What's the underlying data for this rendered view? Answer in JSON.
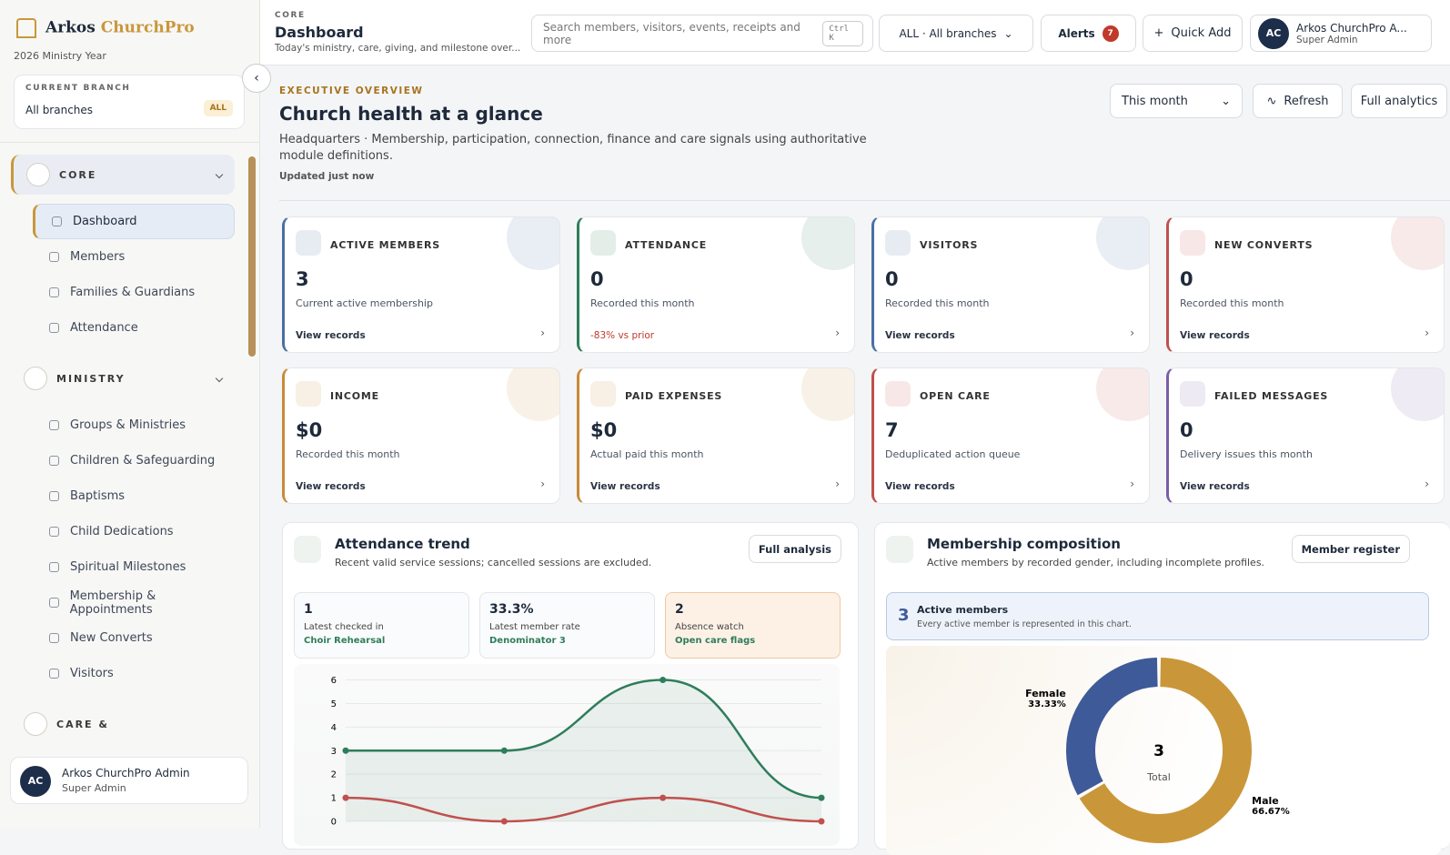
{
  "sidebar": {
    "brand_a": "Arkos",
    "brand_b": "ChurchPro",
    "year": "2026 Ministry Year",
    "branch_label": "CURRENT BRANCH",
    "branch": "All branches",
    "branch_badge": "ALL",
    "sections": [
      {
        "title": "CORE",
        "items": [
          "Dashboard",
          "Members",
          "Families & Guardians",
          "Attendance"
        ]
      },
      {
        "title": "MINISTRY",
        "items": [
          "Groups & Ministries",
          "Children & Safeguarding",
          "Baptisms",
          "Child Dedications",
          "Spiritual Milestones",
          "Membership & Appointments",
          "New Converts",
          "Visitors"
        ]
      },
      {
        "title": "CARE &",
        "items": []
      }
    ],
    "user": {
      "initials": "AC",
      "name": "Arkos ChurchPro Admin",
      "role": "Super Admin"
    }
  },
  "topbar": {
    "section": "CORE",
    "title": "Dashboard",
    "subtitle": "Today's ministry, care, giving, and milestone over...",
    "search": "Search members, visitors, events, receipts and more",
    "shortcut": "Ctrl K",
    "branch_select": "ALL · All branches",
    "alerts": "Alerts",
    "alerts_count": "7",
    "quick_add": "Quick Add",
    "user": {
      "initials": "AC",
      "name": "Arkos ChurchPro A...",
      "role": "Super Admin"
    }
  },
  "overview": {
    "eyebrow": "EXECUTIVE OVERVIEW",
    "title": "Church health at a glance",
    "description": "Headquarters · Membership, participation, connection, finance and care signals using authoritative module definitions.",
    "updated": "Updated just now",
    "period": "This month",
    "refresh": "Refresh",
    "full_analytics": "Full analytics"
  },
  "kpis": [
    {
      "label": "ACTIVE MEMBERS",
      "value": "3",
      "note": "Current active membership",
      "link": "View records",
      "color": "#4a6fa5"
    },
    {
      "label": "ATTENDANCE",
      "value": "0",
      "note": "Recorded this month",
      "delta": "-83% vs prior",
      "color": "#2e7d5b"
    },
    {
      "label": "VISITORS",
      "value": "0",
      "note": "Recorded this month",
      "link": "View records",
      "color": "#4a6fa5"
    },
    {
      "label": "NEW CONVERTS",
      "value": "0",
      "note": "Recorded this month",
      "link": "View records",
      "color": "#c0504d"
    },
    {
      "label": "INCOME",
      "value": "$0",
      "note": "Recorded this month",
      "link": "View records",
      "color": "#c98a3a"
    },
    {
      "label": "PAID EXPENSES",
      "value": "$0",
      "note": "Actual paid this month",
      "link": "View records",
      "color": "#c98a3a"
    },
    {
      "label": "OPEN CARE",
      "value": "7",
      "note": "Deduplicated action queue",
      "link": "View records",
      "color": "#c0504d"
    },
    {
      "label": "FAILED MESSAGES",
      "value": "0",
      "note": "Delivery issues this month",
      "link": "View records",
      "color": "#7a5ea8"
    }
  ],
  "chart_data": [
    {
      "type": "line",
      "title": "Attendance trend",
      "subtitle": "Recent valid service sessions; cancelled sessions are excluded.",
      "button": "Full analysis",
      "stats": [
        {
          "value": "1",
          "label": "Latest checked in",
          "sub": "Choir Rehearsal"
        },
        {
          "value": "33.3%",
          "label": "Latest member rate",
          "sub": "Denominator 3"
        },
        {
          "value": "2",
          "label": "Absence watch",
          "sub": "Open care flags"
        }
      ],
      "categories": [
        null,
        null,
        null,
        null
      ],
      "series": [
        {
          "color": "#2e7d5b",
          "values": [
            3,
            3,
            6,
            1
          ]
        },
        {
          "color": "#c0504d",
          "values": [
            1,
            0,
            1,
            0
          ]
        }
      ],
      "ylim": [
        0,
        6.6
      ],
      "yticks": [
        0,
        1,
        2,
        3,
        4,
        5,
        6
      ],
      "grid": true
    },
    {
      "type": "pie",
      "title": "Membership composition",
      "subtitle": "Active members by recorded gender, including incomplete profiles.",
      "button": "Member register",
      "callout_value": "3",
      "callout_title": "Active members",
      "callout_sub": "Every active member is represented in this chart.",
      "categories": [
        "Male",
        "Female"
      ],
      "values": [
        66.67,
        33.33
      ],
      "value_labels": [
        "66.67%",
        "33.33%"
      ],
      "colors": [
        "#c9973a",
        "#3f5a99"
      ],
      "total": "3",
      "total_label": "Total"
    }
  ]
}
